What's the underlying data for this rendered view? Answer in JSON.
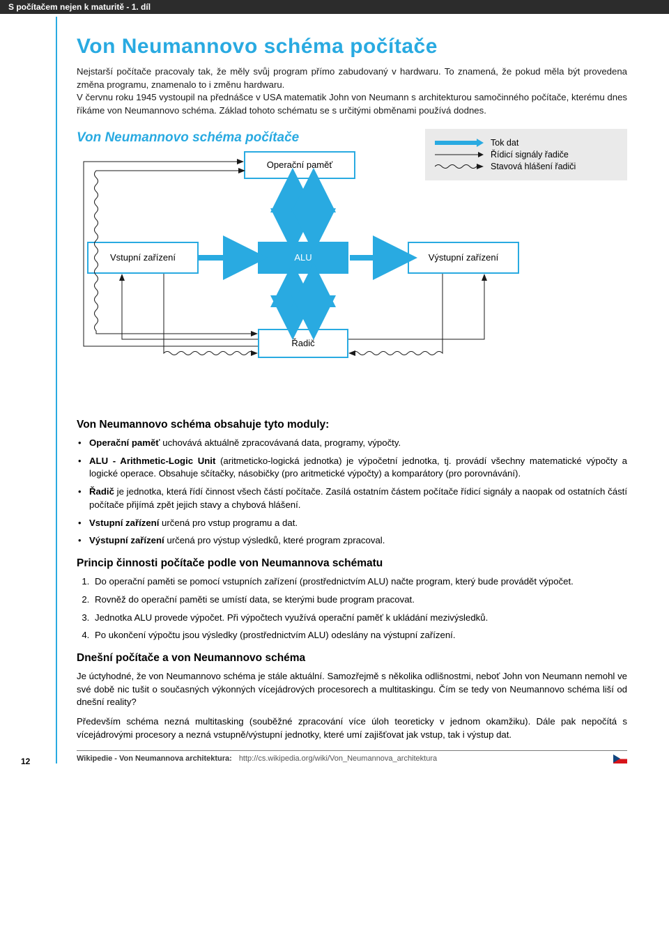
{
  "header": "S počítačem nejen k maturitě - 1. díl",
  "page_number": "12",
  "title": "Von Neumannovo schéma počítače",
  "intro": "Nejstarší počítače pracovaly tak, že měly svůj program přímo zabudovaný v hardwaru. To znamená, že pokud měla být provedena změna programu, znamenalo to i změnu hardwaru.\nV červnu roku 1945 vystoupil na přednášce v USA matematik John von Neumann s architekturou samočinného počítače, kterému dnes říkáme von Neumannovo schéma. Základ tohoto schématu se s určitými obměnami používá dodnes.",
  "diagram": {
    "title": "Von Neumannovo schéma počítače",
    "nodes": {
      "mem": "Operační paměť",
      "alu": "ALU",
      "in": "Vstupní zařízení",
      "out": "Výstupní zařízení",
      "ctrl": "Řadič"
    },
    "legend": {
      "l1": "Tok dat",
      "l2": "Řídicí signály řadiče",
      "l3": "Stavová hlášení řadiči"
    },
    "colors": {
      "accent": "#29aae1",
      "legend_bg": "#eaeaea",
      "thin_line": "#1a1a1a"
    }
  },
  "modules": {
    "heading": "Von Neumannovo schéma obsahuje tyto moduly:",
    "items": {
      "m1_b": "Operační paměť",
      "m1_t": " uchovává aktuálně zpracovávaná data, programy, výpočty.",
      "m2_b": "ALU - Arithmetic-Logic Unit",
      "m2_t": " (aritmeticko-logická jednotka) je výpočetní jednotka, tj. provádí všechny matematické výpočty a logické operace. Obsahuje sčítačky, násobičky (pro aritmetické výpočty) a komparátory (pro porovnávání).",
      "m3_b": "Řadič",
      "m3_t": " je jednotka, která řídí činnost všech částí počítače. Zasílá ostatním částem počítače řídicí signály a naopak od ostatních částí počítače přijímá zpět jejich stavy a chybová hlášení.",
      "m4_b": "Vstupní zařízení",
      "m4_t": " určená pro vstup programu a dat.",
      "m5_b": "Výstupní zařízení",
      "m5_t": " určená pro výstup výsledků, které program zpracoval."
    }
  },
  "principle": {
    "heading": "Princip činnosti počítače podle von Neumannova schématu",
    "items": {
      "p1": "Do operační paměti se pomocí vstupních zařízení (prostřednictvím ALU) načte program, který bude provádět výpočet.",
      "p2": "Rovněž do operační paměti se umístí data, se kterými bude program pracovat.",
      "p3": "Jednotka ALU provede výpočet. Při výpočtech využívá operační paměť k ukládání mezivýsledků.",
      "p4": "Po ukončení výpočtu jsou výsledky (prostřednictvím ALU) odeslány na výstupní zařízení."
    }
  },
  "today": {
    "heading": "Dnešní počítače a von Neumannovo schéma",
    "p1": "Je úctyhodné, že von Neumannovo schéma je stále aktuální. Samozřejmě s několika odlišnostmi, neboť John von Neumann nemohl ve své době nic tušit o současných výkonných vícejádrových procesorech a multitaskingu. Čím se tedy von Neumannovo schéma liší od dnešní reality?",
    "p2": "Především schéma nezná multitasking (souběžné zpracování více úloh teoreticky v jednom okamžiku). Dále pak nepočítá s vícejádrovými procesory a nezná vstupně/výstupní jednotky, které umí zajišťovat jak vstup, tak i výstup dat."
  },
  "footer": {
    "label": "Wikipedie - Von Neumannova architektura:",
    "url": "http://cs.wikipedia.org/wiki/Von_Neumannova_architektura"
  }
}
